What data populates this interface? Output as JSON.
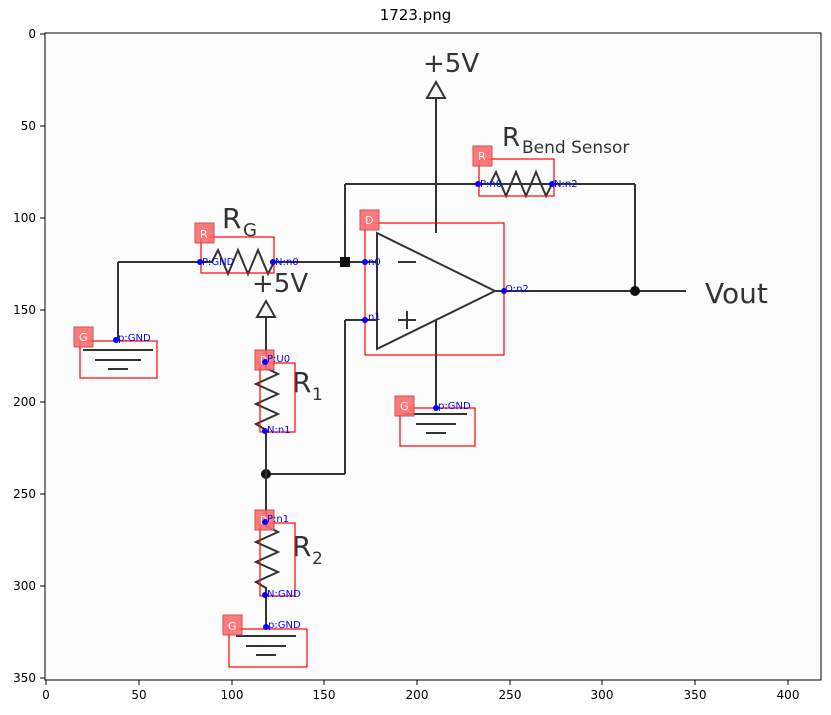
{
  "title": "1723.png",
  "axes": {
    "x_ticks": [
      "0",
      "50",
      "100",
      "150",
      "200",
      "250",
      "300",
      "350",
      "400"
    ],
    "y_ticks": [
      "0",
      "50",
      "100",
      "150",
      "200",
      "250",
      "300",
      "350"
    ]
  },
  "circuit_labels": {
    "vcc_top": "+5V",
    "vcc_mid": "+5V",
    "rg": "R",
    "rg_sub": "G",
    "r1": "R",
    "r1_sub": "1",
    "r2": "R",
    "r2_sub": "2",
    "rbend": "R",
    "rbend_sub": "Bend Sensor",
    "vout": "Vout"
  },
  "components": [
    {
      "tag": "R",
      "pins": [
        "P:GND",
        "N:n0"
      ]
    },
    {
      "tag": "R",
      "pins": [
        "P:n0",
        "N:n2"
      ]
    },
    {
      "tag": "D",
      "pins": [
        "n0",
        "n1",
        "O:n2"
      ]
    },
    {
      "tag": "R",
      "pins": [
        "P:U0",
        "N:n1"
      ]
    },
    {
      "tag": "R",
      "pins": [
        "P:n1",
        "N:GND"
      ]
    },
    {
      "tag": "G",
      "pins": [
        "p:GND"
      ]
    },
    {
      "tag": "G",
      "pins": [
        "p:GND"
      ]
    },
    {
      "tag": "G",
      "pins": [
        "p:GND"
      ]
    }
  ]
}
